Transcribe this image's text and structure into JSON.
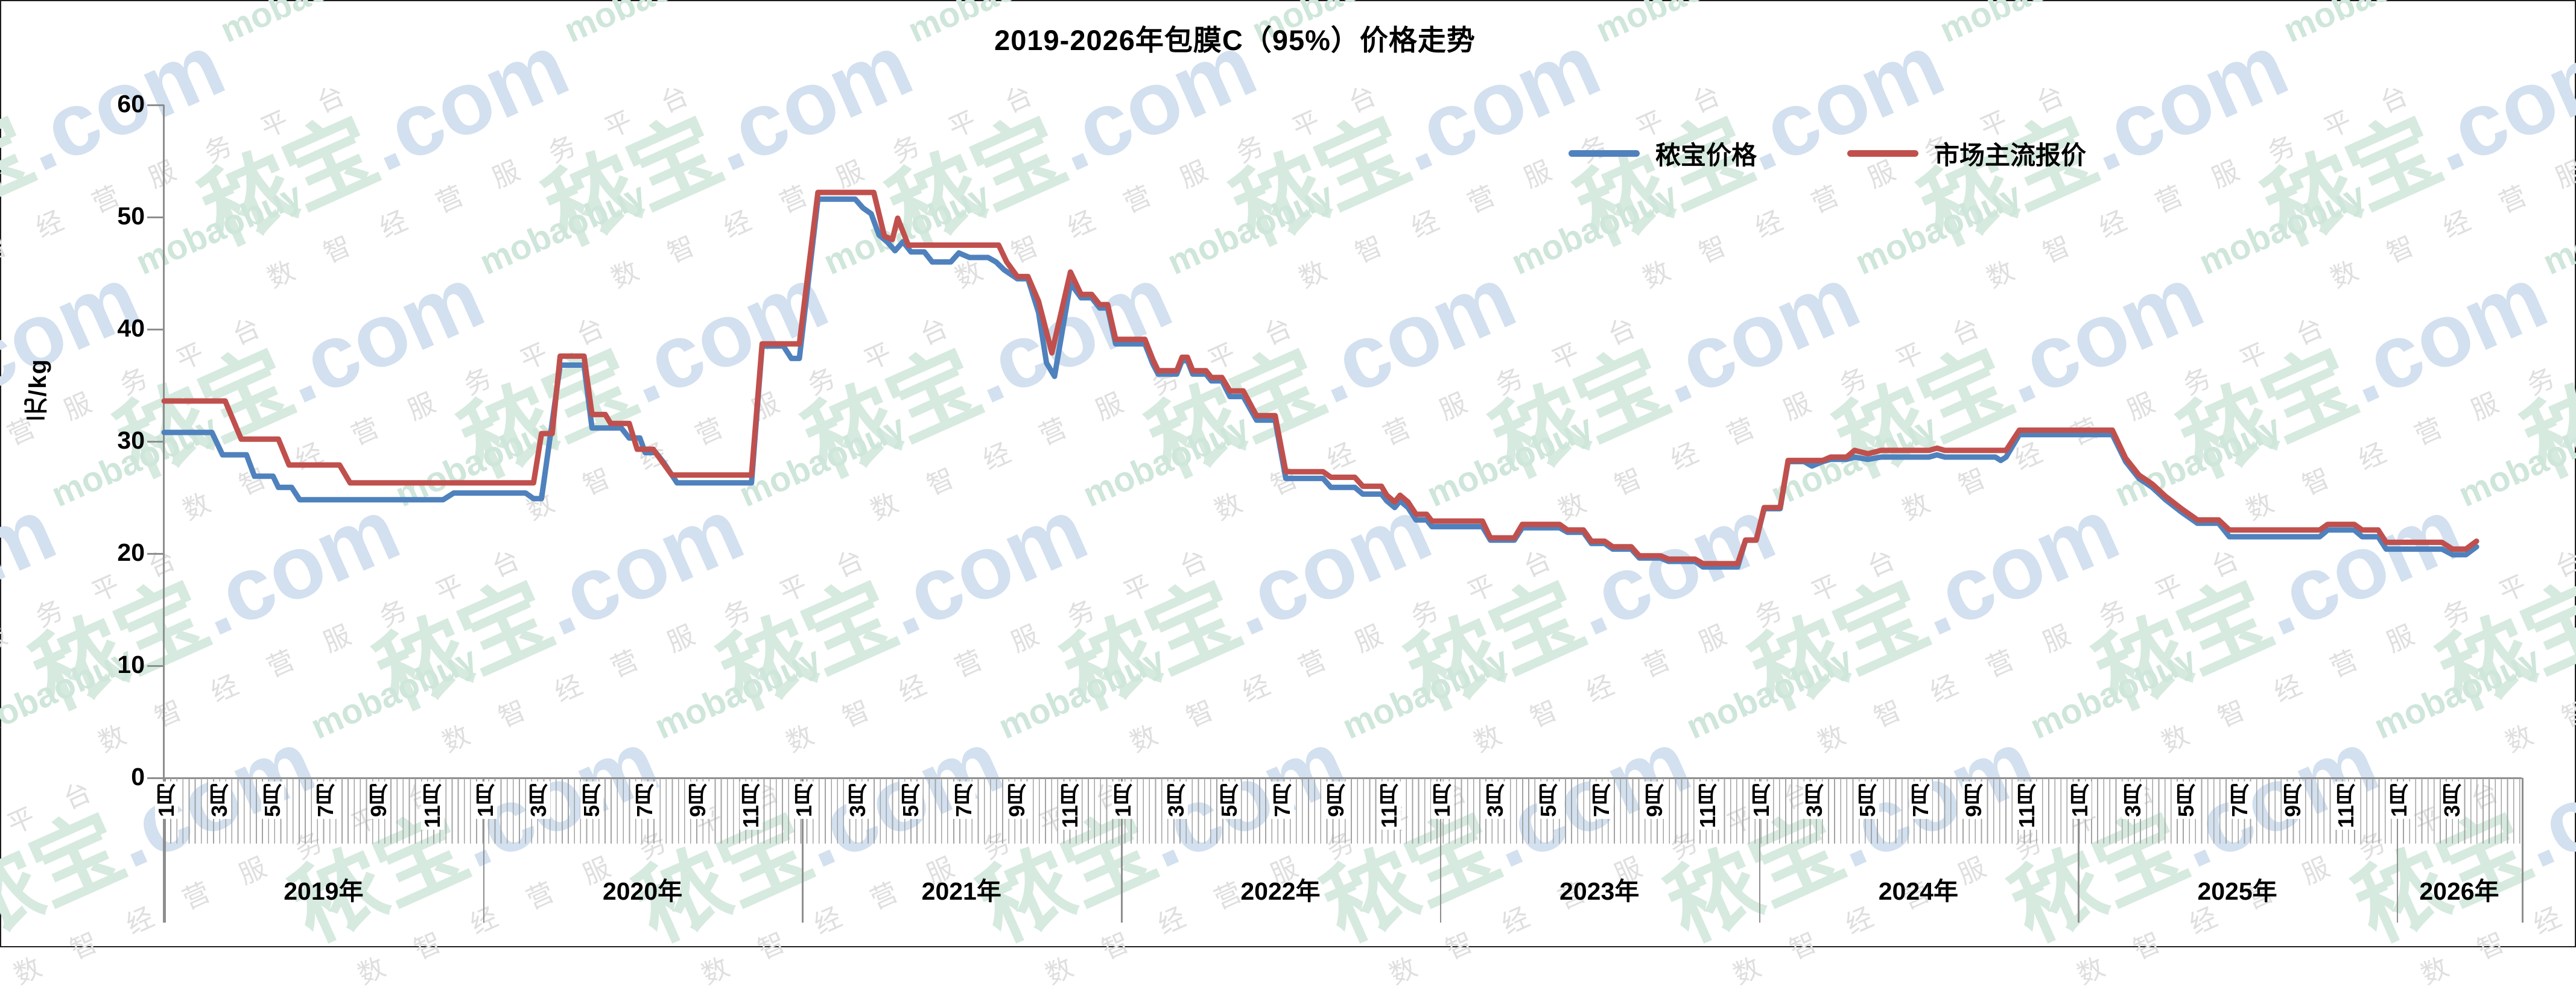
{
  "title": "2019-2026年包膜C（95%）价格走势",
  "y_axis": {
    "label": "元/kg",
    "ticks": [
      0,
      10,
      20,
      30,
      40,
      50,
      60
    ],
    "min": 0,
    "max": 60
  },
  "x_axis": {
    "years": [
      {
        "label": "2019年",
        "month_labels": [
          "1月",
          "3月",
          "5月",
          "7月",
          "9月",
          "11月"
        ]
      },
      {
        "label": "2020年",
        "month_labels": [
          "1月",
          "3月",
          "5月",
          "7月",
          "9月",
          "11月"
        ]
      },
      {
        "label": "2021年",
        "month_labels": [
          "1月",
          "3月",
          "5月",
          "7月",
          "9月",
          "11月"
        ]
      },
      {
        "label": "2022年",
        "month_labels": [
          "1月",
          "3月",
          "5月",
          "7月",
          "9月",
          "11月"
        ]
      },
      {
        "label": "2023年",
        "month_labels": [
          "1月",
          "3月",
          "5月",
          "7月",
          "9月",
          "11月"
        ]
      },
      {
        "label": "2024年",
        "month_labels": [
          "1月",
          "3月",
          "5月",
          "7月",
          "9月",
          "11月"
        ]
      },
      {
        "label": "2025年",
        "month_labels": [
          "1月",
          "3月",
          "5月",
          "7月",
          "9月",
          "11月"
        ]
      },
      {
        "label": "2026年",
        "month_labels": [
          "1月",
          "3月"
        ]
      }
    ]
  },
  "legend": {
    "items": [
      {
        "label": "秾宝价格",
        "color": "#4F81BD"
      },
      {
        "label": "市场主流报价",
        "color": "#C0504D"
      }
    ]
  },
  "watermark": {
    "brand_zh": "秾宝",
    "brand_com": ".com",
    "brand_en": "mobaobuy",
    "slogan": "数智经营服务平台",
    "color_green": "#d6eadf",
    "color_blue": "#d2e0ef",
    "color_mob": "#cfe6da",
    "color_gray": "#dfdfdf"
  },
  "chart_data": {
    "type": "line",
    "title": "2019-2026年包膜C（95%）价格走势",
    "ylabel": "元/kg",
    "ylim": [
      0,
      60
    ],
    "grid": false,
    "legend_position": "top-right",
    "x_unit": "months since Jan 2019 (0 = 2019-01, weekly quotes approximated by breakpoints)",
    "x_axis_end": 88.7,
    "series": [
      {
        "name": "秾宝价格",
        "color": "#4F81BD",
        "points": [
          [
            0,
            30.8
          ],
          [
            1.8,
            30.8
          ],
          [
            2.2,
            28.8
          ],
          [
            3.1,
            28.8
          ],
          [
            3.4,
            26.9
          ],
          [
            4.1,
            26.9
          ],
          [
            4.3,
            25.9
          ],
          [
            4.8,
            25.9
          ],
          [
            5.1,
            24.8
          ],
          [
            10.5,
            24.8
          ],
          [
            10.9,
            25.4
          ],
          [
            13.6,
            25.4
          ],
          [
            13.9,
            24.9
          ],
          [
            14.2,
            24.9
          ],
          [
            14.9,
            36.8
          ],
          [
            15.8,
            36.8
          ],
          [
            16.1,
            31.2
          ],
          [
            17.2,
            31.2
          ],
          [
            17.5,
            30.3
          ],
          [
            17.9,
            30.3
          ],
          [
            18.1,
            29.0
          ],
          [
            18.5,
            29.0
          ],
          [
            18.8,
            28.1
          ],
          [
            19.3,
            26.3
          ],
          [
            22.1,
            26.3
          ],
          [
            22.5,
            38.5
          ],
          [
            23.3,
            38.5
          ],
          [
            23.6,
            37.4
          ],
          [
            23.9,
            37.4
          ],
          [
            24.6,
            51.6
          ],
          [
            26.0,
            51.6
          ],
          [
            26.3,
            50.8
          ],
          [
            26.6,
            50.3
          ],
          [
            26.9,
            48.4
          ],
          [
            27.2,
            47.8
          ],
          [
            27.5,
            47.0
          ],
          [
            27.8,
            47.8
          ],
          [
            28.1,
            46.9
          ],
          [
            28.6,
            46.9
          ],
          [
            28.9,
            46.0
          ],
          [
            29.6,
            46.0
          ],
          [
            29.9,
            46.8
          ],
          [
            30.3,
            46.4
          ],
          [
            31.0,
            46.4
          ],
          [
            31.3,
            46.0
          ],
          [
            31.6,
            45.3
          ],
          [
            32.1,
            44.5
          ],
          [
            32.5,
            44.5
          ],
          [
            32.9,
            41.5
          ],
          [
            33.2,
            37.0
          ],
          [
            33.5,
            35.8
          ],
          [
            34.1,
            44.1
          ],
          [
            34.5,
            42.8
          ],
          [
            34.9,
            42.8
          ],
          [
            35.2,
            41.9
          ],
          [
            35.5,
            41.9
          ],
          [
            35.8,
            38.7
          ],
          [
            36.9,
            38.7
          ],
          [
            37.2,
            36.9
          ],
          [
            37.4,
            36.0
          ],
          [
            38.1,
            36.0
          ],
          [
            38.3,
            37.2
          ],
          [
            38.5,
            37.2
          ],
          [
            38.7,
            36.0
          ],
          [
            39.2,
            36.0
          ],
          [
            39.4,
            35.4
          ],
          [
            39.8,
            35.4
          ],
          [
            40.1,
            34.0
          ],
          [
            40.6,
            34.0
          ],
          [
            41.1,
            31.9
          ],
          [
            41.8,
            31.9
          ],
          [
            42.2,
            26.7
          ],
          [
            43.6,
            26.7
          ],
          [
            43.9,
            25.9
          ],
          [
            44.8,
            25.9
          ],
          [
            45.1,
            25.3
          ],
          [
            45.8,
            25.3
          ],
          [
            46.0,
            24.7
          ],
          [
            46.3,
            24.1
          ],
          [
            46.5,
            24.7
          ],
          [
            46.8,
            24.1
          ],
          [
            47.1,
            23.0
          ],
          [
            47.5,
            23.0
          ],
          [
            47.7,
            22.4
          ],
          [
            49.6,
            22.4
          ],
          [
            49.9,
            21.2
          ],
          [
            50.8,
            21.2
          ],
          [
            51.1,
            22.3
          ],
          [
            52.5,
            22.3
          ],
          [
            52.8,
            21.9
          ],
          [
            53.4,
            21.9
          ],
          [
            53.7,
            20.9
          ],
          [
            54.2,
            20.9
          ],
          [
            54.5,
            20.4
          ],
          [
            55.2,
            20.4
          ],
          [
            55.5,
            19.6
          ],
          [
            56.3,
            19.6
          ],
          [
            56.6,
            19.3
          ],
          [
            57.6,
            19.3
          ],
          [
            57.9,
            18.8
          ],
          [
            59.2,
            18.8
          ],
          [
            59.5,
            21.2
          ],
          [
            59.9,
            21.2
          ],
          [
            60.2,
            24.0
          ],
          [
            60.8,
            24.0
          ],
          [
            61.1,
            28.2
          ],
          [
            61.7,
            28.2
          ],
          [
            62.0,
            27.8
          ],
          [
            62.4,
            28.2
          ],
          [
            62.7,
            28.4
          ],
          [
            63.3,
            28.4
          ],
          [
            63.6,
            28.6
          ],
          [
            64.1,
            28.4
          ],
          [
            64.6,
            28.6
          ],
          [
            66.4,
            28.6
          ],
          [
            66.7,
            28.8
          ],
          [
            67.0,
            28.6
          ],
          [
            68.9,
            28.6
          ],
          [
            69.1,
            28.3
          ],
          [
            69.3,
            28.6
          ],
          [
            69.8,
            30.6
          ],
          [
            73.3,
            30.6
          ],
          [
            73.8,
            28.2
          ],
          [
            74.3,
            26.7
          ],
          [
            74.8,
            25.9
          ],
          [
            75.3,
            24.8
          ],
          [
            75.9,
            23.7
          ],
          [
            76.5,
            22.7
          ],
          [
            77.3,
            22.7
          ],
          [
            77.7,
            21.5
          ],
          [
            81.1,
            21.5
          ],
          [
            81.4,
            22.1
          ],
          [
            82.4,
            22.1
          ],
          [
            82.7,
            21.5
          ],
          [
            83.3,
            21.5
          ],
          [
            83.6,
            20.4
          ],
          [
            85.7,
            20.4
          ],
          [
            86.1,
            19.9
          ],
          [
            86.6,
            19.9
          ],
          [
            87.0,
            20.6
          ]
        ]
      },
      {
        "name": "市场主流报价",
        "color": "#C0504D",
        "points": [
          [
            0,
            33.6
          ],
          [
            2.3,
            33.6
          ],
          [
            2.9,
            30.2
          ],
          [
            4.3,
            30.2
          ],
          [
            4.7,
            27.9
          ],
          [
            6.6,
            27.9
          ],
          [
            7.0,
            26.3
          ],
          [
            13.9,
            26.3
          ],
          [
            14.2,
            30.7
          ],
          [
            14.6,
            30.7
          ],
          [
            14.9,
            37.6
          ],
          [
            15.8,
            37.6
          ],
          [
            16.1,
            32.4
          ],
          [
            16.6,
            32.4
          ],
          [
            16.8,
            31.6
          ],
          [
            17.5,
            31.6
          ],
          [
            17.8,
            29.3
          ],
          [
            18.4,
            29.3
          ],
          [
            19.1,
            27.0
          ],
          [
            22.1,
            27.0
          ],
          [
            22.5,
            38.7
          ],
          [
            23.9,
            38.7
          ],
          [
            24.6,
            52.2
          ],
          [
            26.7,
            52.2
          ],
          [
            27.1,
            48.3
          ],
          [
            27.4,
            48.0
          ],
          [
            27.6,
            49.9
          ],
          [
            28.0,
            47.5
          ],
          [
            31.4,
            47.5
          ],
          [
            31.7,
            46.0
          ],
          [
            32.1,
            44.7
          ],
          [
            32.5,
            44.7
          ],
          [
            32.9,
            42.5
          ],
          [
            33.4,
            37.9
          ],
          [
            34.1,
            45.1
          ],
          [
            34.5,
            43.1
          ],
          [
            34.9,
            43.1
          ],
          [
            35.2,
            42.2
          ],
          [
            35.5,
            42.2
          ],
          [
            35.8,
            39.1
          ],
          [
            36.9,
            39.1
          ],
          [
            37.2,
            37.3
          ],
          [
            37.4,
            36.3
          ],
          [
            38.1,
            36.3
          ],
          [
            38.3,
            37.5
          ],
          [
            38.5,
            37.5
          ],
          [
            38.7,
            36.3
          ],
          [
            39.2,
            36.3
          ],
          [
            39.4,
            35.7
          ],
          [
            39.8,
            35.7
          ],
          [
            40.1,
            34.5
          ],
          [
            40.6,
            34.5
          ],
          [
            41.1,
            32.3
          ],
          [
            41.8,
            32.3
          ],
          [
            42.2,
            27.3
          ],
          [
            43.6,
            27.3
          ],
          [
            43.9,
            26.8
          ],
          [
            44.8,
            26.8
          ],
          [
            45.1,
            26.0
          ],
          [
            45.8,
            26.0
          ],
          [
            46.0,
            25.2
          ],
          [
            46.3,
            24.6
          ],
          [
            46.5,
            25.2
          ],
          [
            46.8,
            24.6
          ],
          [
            47.1,
            23.5
          ],
          [
            47.5,
            23.5
          ],
          [
            47.7,
            22.9
          ],
          [
            49.6,
            22.9
          ],
          [
            49.9,
            21.4
          ],
          [
            50.8,
            21.4
          ],
          [
            51.1,
            22.6
          ],
          [
            52.5,
            22.6
          ],
          [
            52.8,
            22.1
          ],
          [
            53.4,
            22.1
          ],
          [
            53.7,
            21.1
          ],
          [
            54.2,
            21.1
          ],
          [
            54.5,
            20.6
          ],
          [
            55.2,
            20.6
          ],
          [
            55.5,
            19.8
          ],
          [
            56.3,
            19.8
          ],
          [
            56.6,
            19.5
          ],
          [
            57.6,
            19.5
          ],
          [
            57.9,
            19.1
          ],
          [
            59.2,
            19.1
          ],
          [
            59.5,
            21.2
          ],
          [
            59.9,
            21.2
          ],
          [
            60.2,
            24.1
          ],
          [
            60.8,
            24.1
          ],
          [
            61.1,
            28.3
          ],
          [
            62.4,
            28.3
          ],
          [
            62.7,
            28.6
          ],
          [
            63.3,
            28.6
          ],
          [
            63.6,
            29.2
          ],
          [
            64.1,
            28.9
          ],
          [
            64.6,
            29.2
          ],
          [
            66.4,
            29.2
          ],
          [
            66.7,
            29.4
          ],
          [
            67.0,
            29.2
          ],
          [
            69.3,
            29.2
          ],
          [
            69.8,
            31.0
          ],
          [
            73.3,
            31.0
          ],
          [
            73.8,
            28.5
          ],
          [
            74.3,
            27.0
          ],
          [
            74.8,
            26.2
          ],
          [
            75.3,
            25.1
          ],
          [
            75.9,
            24.0
          ],
          [
            76.5,
            23.0
          ],
          [
            77.3,
            23.0
          ],
          [
            77.7,
            22.1
          ],
          [
            81.1,
            22.1
          ],
          [
            81.4,
            22.6
          ],
          [
            82.4,
            22.6
          ],
          [
            82.7,
            22.1
          ],
          [
            83.3,
            22.1
          ],
          [
            83.6,
            21.0
          ],
          [
            85.7,
            21.0
          ],
          [
            86.1,
            20.4
          ],
          [
            86.6,
            20.4
          ],
          [
            87.0,
            21.1
          ]
        ]
      }
    ]
  }
}
